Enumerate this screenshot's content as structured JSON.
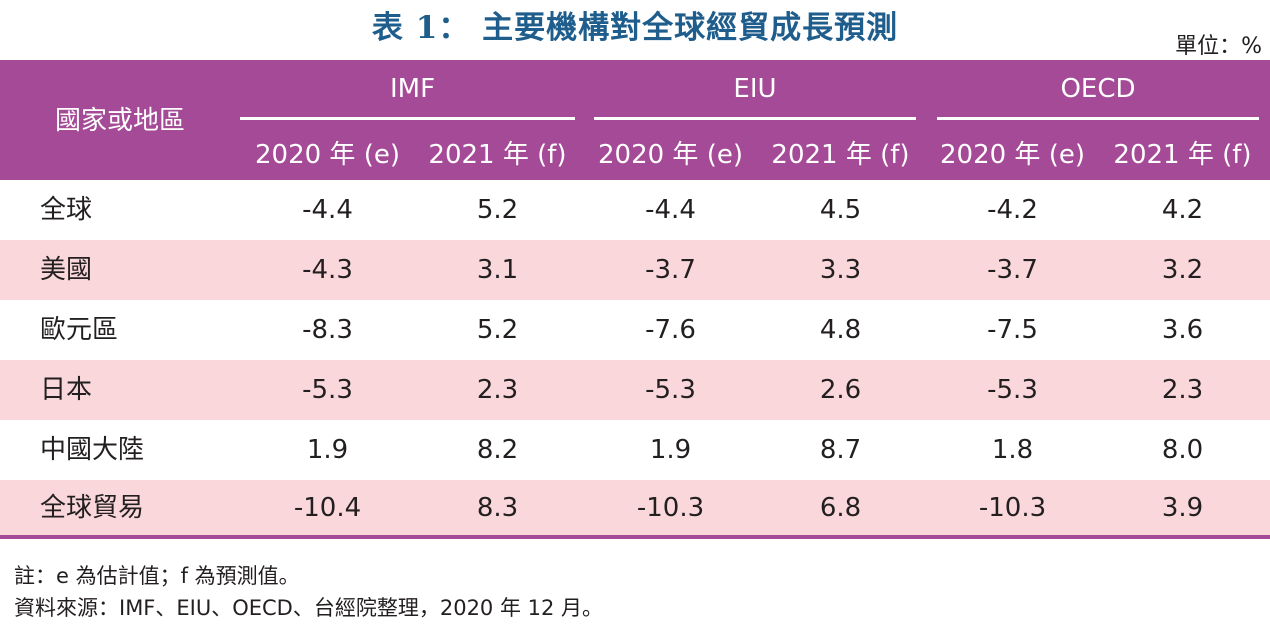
{
  "title": "表 1： 主要機構對全球經貿成長預測",
  "unit": "單位：%",
  "header": {
    "region_label": "國家或地區",
    "sources": [
      "IMF",
      "EIU",
      "OECD"
    ],
    "year_labels": [
      "2020 年 (e)",
      "2021 年 (f)",
      "2020 年 (e)",
      "2021 年 (f)",
      "2020 年 (e)",
      "2021 年 (f)"
    ]
  },
  "rows": [
    {
      "region": "全球",
      "values": [
        "-4.4",
        "5.2",
        "-4.4",
        "4.5",
        "-4.2",
        "4.2"
      ]
    },
    {
      "region": "美國",
      "values": [
        "-4.3",
        "3.1",
        "-3.7",
        "3.3",
        "-3.7",
        "3.2"
      ]
    },
    {
      "region": "歐元區",
      "values": [
        "-8.3",
        "5.2",
        "-7.6",
        "4.8",
        "-7.5",
        "3.6"
      ]
    },
    {
      "region": "日本",
      "values": [
        "-5.3",
        "2.3",
        "-5.3",
        "2.6",
        "-5.3",
        "2.3"
      ]
    },
    {
      "region": "中國大陸",
      "values": [
        "1.9",
        "8.2",
        "1.9",
        "8.7",
        "1.8",
        "8.0"
      ]
    },
    {
      "region": "全球貿易",
      "values": [
        "-10.4",
        "8.3",
        "-10.3",
        "6.8",
        "-10.3",
        "3.9"
      ]
    }
  ],
  "notes": {
    "note": "註：e 為估計值；f 為預測值。",
    "source": "資料來源：IMF、EIU、OECD、台經院整理，2020 年 12 月。"
  },
  "colors": {
    "header_bg": "#a44a97",
    "alt_row_bg": "#f9d7db",
    "title": "#1f5e8c"
  }
}
